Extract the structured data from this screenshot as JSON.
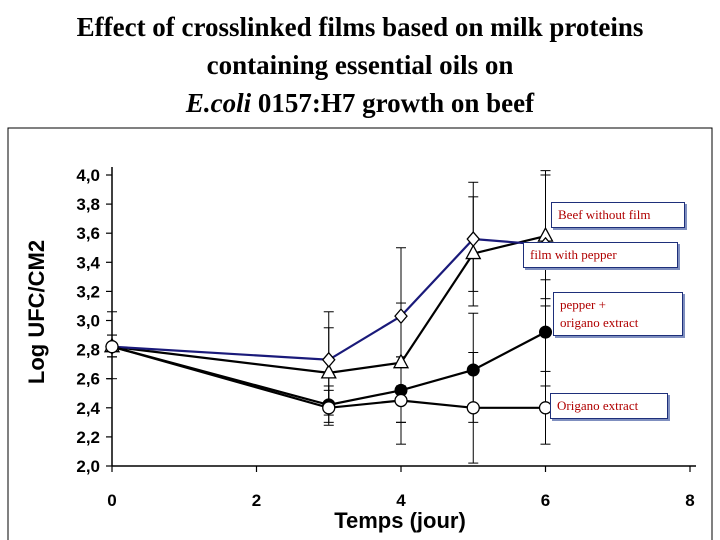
{
  "page_title": {
    "line1": "Effect of crosslinked films based on milk proteins",
    "line2": "containing essential oils on",
    "line3_italic": "E.coli",
    "line3_rest": " 0157:H7 growth on beef"
  },
  "chart_data": {
    "type": "line",
    "xlabel": "Temps (jour)",
    "ylabel": "Log UFC/CM2",
    "xlim": [
      0,
      8
    ],
    "ylim": [
      2.0,
      4.0
    ],
    "xticks": [
      "0",
      "2",
      "4",
      "6",
      "8"
    ],
    "yticks": [
      "2,0",
      "2,2",
      "2,4",
      "2,6",
      "2,8",
      "3,0",
      "3,2",
      "3,4",
      "3,6",
      "3,8",
      "4,0"
    ],
    "grid": false,
    "series": [
      {
        "name": "Beef without film",
        "marker": "triangle-open",
        "color": "#000000",
        "points": [
          {
            "x": 0,
            "y": 2.82,
            "err": [
              2.75,
              2.9
            ]
          },
          {
            "x": 3,
            "y": 2.64,
            "err": [
              2.35,
              2.95
            ]
          },
          {
            "x": 4,
            "y": 2.71,
            "err": [
              2.3,
              3.12
            ]
          },
          {
            "x": 5,
            "y": 3.46,
            "err": [
              3.1,
              3.85
            ]
          },
          {
            "x": 6,
            "y": 3.58,
            "err": [
              3.15,
              4.0
            ]
          }
        ]
      },
      {
        "name": "film with pepper",
        "marker": "diamond-open",
        "color": "#1a1a7a",
        "points": [
          {
            "x": 0,
            "y": 2.82,
            "err": [
              2.6,
              3.06
            ]
          },
          {
            "x": 3,
            "y": 2.73,
            "err": [
              2.4,
              3.06
            ]
          },
          {
            "x": 4,
            "y": 3.03,
            "err": [
              2.55,
              3.5
            ]
          },
          {
            "x": 5,
            "y": 3.56,
            "err": [
              3.2,
              3.95
            ]
          },
          {
            "x": 6,
            "y": 3.52,
            "err": [
              3.1,
              4.03
            ]
          }
        ]
      },
      {
        "name": "pepper + origano extract",
        "marker": "circle-filled",
        "color": "#000000",
        "points": [
          {
            "x": 0,
            "y": 2.82,
            "err": [
              2.75,
              2.9
            ]
          },
          {
            "x": 3,
            "y": 2.42,
            "err": [
              2.3,
              2.55
            ]
          },
          {
            "x": 4,
            "y": 2.52,
            "err": [
              2.3,
              2.75
            ]
          },
          {
            "x": 5,
            "y": 2.66,
            "err": [
              2.3,
              3.05
            ]
          },
          {
            "x": 6,
            "y": 2.92,
            "err": [
              2.55,
              3.28
            ]
          }
        ]
      },
      {
        "name": "Origano extract",
        "marker": "circle-open",
        "color": "#000000",
        "points": [
          {
            "x": 0,
            "y": 2.82,
            "err": [
              2.75,
              2.9
            ]
          },
          {
            "x": 3,
            "y": 2.4,
            "err": [
              2.28,
              2.52
            ]
          },
          {
            "x": 4,
            "y": 2.45,
            "err": [
              2.15,
              2.75
            ]
          },
          {
            "x": 5,
            "y": 2.4,
            "err": [
              2.02,
              2.78
            ]
          },
          {
            "x": 6,
            "y": 2.4,
            "err": [
              2.15,
              2.65
            ]
          }
        ]
      }
    ],
    "legend": [
      {
        "label": "Beef without film",
        "position": "upper-right"
      },
      {
        "label": "film with pepper",
        "position": "upper-right"
      },
      {
        "label": "pepper +\norigano extract",
        "position": "right"
      },
      {
        "label": "Origano extract",
        "position": "lower-right"
      }
    ]
  }
}
